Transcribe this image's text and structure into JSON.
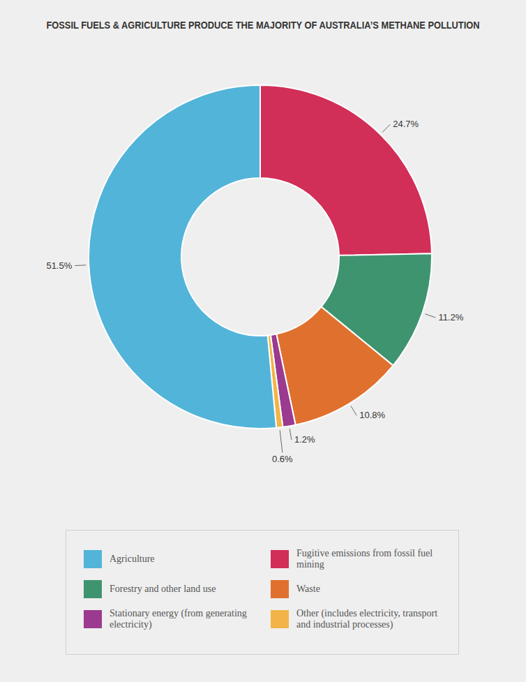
{
  "chart_data": {
    "type": "donut",
    "title": "FOSSIL FUELS & AGRICULTURE PRODUCE THE MAJORITY OF AUSTRALIA’S METHANE POLLUTION",
    "categories": [
      "Fugitive emissions from fossil fuel mining",
      "Forestry and other land use",
      "Waste",
      "Stationary energy (from generating electricity)",
      "Other (includes electricity, transport and industrial processes)",
      "Agriculture"
    ],
    "values": [
      24.7,
      11.2,
      10.8,
      1.2,
      0.6,
      51.5
    ],
    "value_labels": [
      "24.7%",
      "11.2%",
      "10.8%",
      "1.2%",
      "0.6%",
      "51.5%"
    ],
    "colors": [
      "#d12e58",
      "#3f9470",
      "#e0702e",
      "#9b3a8f",
      "#f2b448",
      "#53b4d9"
    ],
    "data_labels": true,
    "legend": "bottom"
  }
}
